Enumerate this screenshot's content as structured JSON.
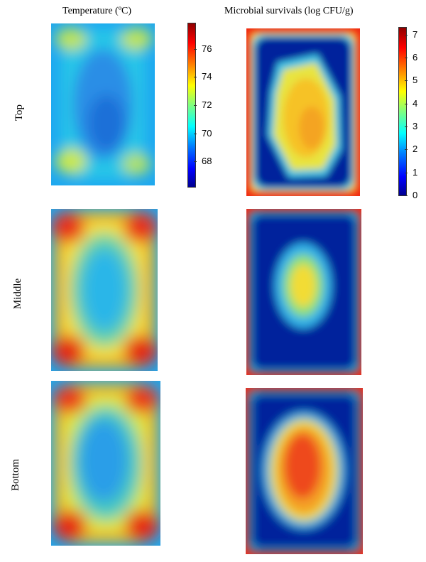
{
  "columns": {
    "temperature_title": "Temperature (ºC)",
    "microbial_title": "Microbial survivals (log CFU/g)"
  },
  "rows": {
    "top": "Top",
    "middle": "Middle",
    "bottom": "Bottom"
  },
  "colorbars": {
    "temperature": {
      "ticks": [
        "76",
        "74",
        "72",
        "70",
        "68"
      ],
      "tick_values": [
        76,
        74,
        72,
        70,
        68
      ],
      "range": [
        66.2,
        77.8
      ]
    },
    "microbial": {
      "ticks": [
        "7",
        "6",
        "5",
        "4",
        "3",
        "2",
        "1",
        "0"
      ],
      "tick_values": [
        7,
        6,
        5,
        4,
        3,
        2,
        1,
        0
      ],
      "range": [
        0,
        7.3
      ]
    }
  },
  "colormap": "jet"
}
